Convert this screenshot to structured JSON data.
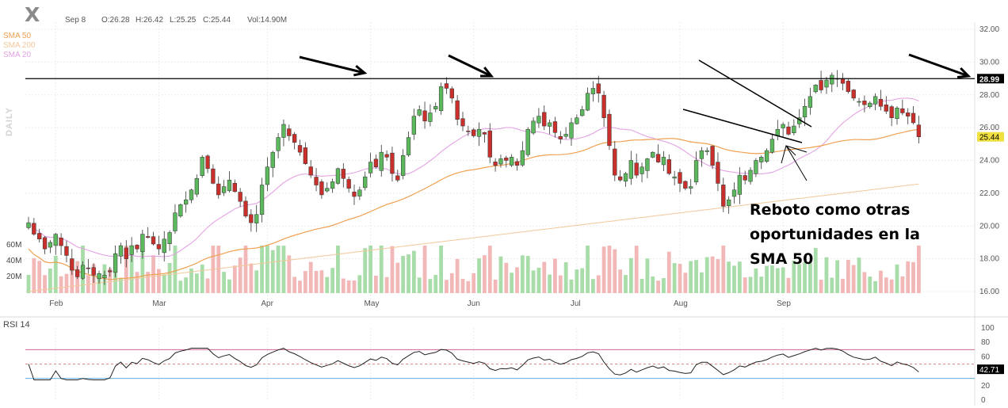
{
  "header": {
    "symbol": "X",
    "date": "Sep 8",
    "open": "O:26.28",
    "high": "H:26.42",
    "low": "L:25.25",
    "close": "C:25.44",
    "volume": "Vol:14.90M"
  },
  "panel_label": "DAILY",
  "sma_legend": [
    {
      "label": "SMA 50",
      "color": "#f0a050"
    },
    {
      "label": "SMA 200",
      "color": "#f2c89a"
    },
    {
      "label": "SMA 20",
      "color": "#e4a3e4"
    }
  ],
  "annotation": "Reboto como otras\noportunidades en la\nSMA 50",
  "rsi_title": "RSI 14",
  "colors": {
    "up": "#5cb85c",
    "down": "#c9302c",
    "vol_up": "#a8dca8",
    "vol_down": "#f2b8b8",
    "rsi_line": "#222222",
    "rsi_70": "#c05080",
    "rsi_30": "#4ea0d8",
    "price_tag": "#000000",
    "close_tag": "#f0e040"
  },
  "chart_data": [
    {
      "type": "candlestick",
      "title": "",
      "y_ticks": [
        "32.00",
        "30.00",
        "28.00",
        "26.00",
        "24.00",
        "22.00",
        "20.00",
        "18.00",
        "16.00"
      ],
      "ylim": [
        16,
        32
      ],
      "x_month_labels": [
        {
          "label": "Feb",
          "index": 5
        },
        {
          "label": "Mar",
          "index": 24
        },
        {
          "label": "Apr",
          "index": 44
        },
        {
          "label": "May",
          "index": 63
        },
        {
          "label": "Jun",
          "index": 82
        },
        {
          "label": "Jul",
          "index": 101
        },
        {
          "label": "Aug",
          "index": 120
        },
        {
          "label": "Sep",
          "index": 139
        }
      ],
      "volume_ticks": [
        "60M",
        "40M",
        "20M"
      ],
      "resistance_level": 28.99,
      "resistance_label": "28.99",
      "last_close_label": "25.44",
      "closes": [
        20.2,
        19.5,
        19.2,
        18.6,
        19.0,
        19.5,
        18.8,
        18.2,
        17.3,
        16.9,
        17.6,
        17.4,
        17.0,
        17.1,
        17.0,
        17.2,
        18.3,
        18.8,
        18.0,
        18.8,
        18.6,
        19.5,
        19.3,
        18.9,
        18.6,
        19.2,
        19.6,
        20.8,
        21.3,
        21.6,
        22.2,
        22.9,
        24.2,
        23.5,
        22.6,
        21.9,
        22.4,
        22.8,
        22.1,
        21.5,
        20.6,
        20.2,
        20.7,
        22.5,
        23.6,
        24.5,
        25.4,
        26.2,
        25.5,
        25.1,
        24.5,
        23.8,
        23.1,
        22.5,
        21.9,
        22.3,
        22.7,
        23.5,
        22.9,
        22.3,
        21.8,
        22.2,
        23.0,
        23.9,
        23.6,
        24.5,
        24.2,
        23.2,
        22.8,
        24.3,
        25.4,
        26.7,
        27.1,
        26.4,
        26.9,
        27.3,
        28.5,
        28.4,
        27.8,
        26.5,
        26.1,
        25.8,
        25.5,
        25.9,
        25.6,
        24.2,
        23.7,
        24.1,
        24.0,
        24.2,
        23.7,
        24.6,
        25.9,
        26.4,
        26.7,
        26.1,
        26.3,
        25.7,
        25.3,
        25.6,
        26.3,
        26.6,
        27.1,
        28.1,
        28.4,
        28.1,
        26.6,
        24.9,
        23.1,
        22.8,
        23.2,
        24.0,
        23.1,
        23.6,
        24.1,
        24.5,
        23.9,
        24.2,
        23.2,
        23.0,
        22.6,
        22.3,
        22.4,
        24.0,
        24.6,
        24.6,
        23.7,
        22.6,
        21.2,
        21.6,
        22.2,
        23.1,
        22.8,
        23.4,
        24.0,
        24.2,
        24.6,
        25.3,
        25.9,
        26.2,
        25.6,
        26.1,
        26.6,
        27.3,
        27.9,
        28.6,
        28.3,
        28.9,
        29.2,
        29.0,
        28.7,
        28.2,
        27.8,
        27.6,
        27.4,
        27.5,
        27.9,
        27.3,
        27.0,
        26.6,
        27.2,
        26.9,
        26.7,
        26.3,
        25.44
      ],
      "sma20_sample": [
        20.2,
        17.3,
        18.5,
        23.5,
        25.6,
        26.8,
        27.4,
        25.4,
        24.9,
        25.1,
        26.5,
        27.6,
        26.9
      ],
      "sma50_sample": [
        17.0,
        18.1,
        20.2,
        22.0,
        23.5,
        24.5,
        24.8,
        24.7,
        25.2,
        25.44
      ],
      "sma200_sample": [
        16.0,
        16.8,
        18.1,
        19.6,
        21.0,
        22.1
      ]
    },
    {
      "type": "line",
      "title": "RSI 14",
      "y_ticks": [
        "100",
        "80",
        "60",
        "40",
        "20",
        "0"
      ],
      "ylim": [
        0,
        100
      ],
      "levels": [
        70,
        50,
        30
      ],
      "last_value_label": "42.71"
    }
  ]
}
